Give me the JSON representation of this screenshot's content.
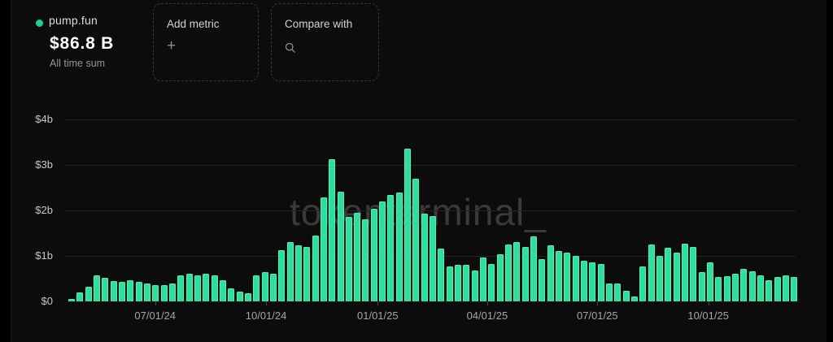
{
  "header": {
    "asset": {
      "name": "pump.fun",
      "value": "$86.8 B",
      "caption": "All time sum",
      "dot_color": "#10d687"
    },
    "add_metric": {
      "label": "Add metric",
      "icon": "plus"
    },
    "compare_with": {
      "label": "Compare with",
      "icon": "search"
    }
  },
  "watermark": "tokenterminal_",
  "chart_data": {
    "type": "bar",
    "title": "pump.fun - All time sum",
    "unit": "USD billions (weekly)",
    "bar_color": "#29e09f",
    "grid": "horizontal",
    "legend": "none",
    "ylim": [
      0,
      4
    ],
    "y_ticks": [
      {
        "label": "$4b",
        "value": 4
      },
      {
        "label": "$3b",
        "value": 3
      },
      {
        "label": "$2b",
        "value": 2
      },
      {
        "label": "$1b",
        "value": 1
      },
      {
        "label": "$0",
        "value": 0
      }
    ],
    "x_ticks": [
      {
        "label": "07/01/24",
        "pos": 0.119
      },
      {
        "label": "10/01/24",
        "pos": 0.271
      },
      {
        "label": "01/01/25",
        "pos": 0.424
      },
      {
        "label": "04/01/25",
        "pos": 0.574
      },
      {
        "label": "07/01/25",
        "pos": 0.725
      },
      {
        "label": "10/01/25",
        "pos": 0.877
      }
    ],
    "values": [
      0.05,
      0.2,
      0.33,
      0.58,
      0.52,
      0.45,
      0.43,
      0.46,
      0.43,
      0.39,
      0.36,
      0.36,
      0.4,
      0.57,
      0.6,
      0.58,
      0.61,
      0.58,
      0.46,
      0.29,
      0.21,
      0.17,
      0.57,
      0.64,
      0.6,
      1.12,
      1.31,
      1.24,
      1.2,
      1.45,
      2.28,
      3.13,
      2.41,
      1.86,
      1.95,
      1.8,
      2.03,
      2.19,
      2.34,
      2.4,
      3.35,
      2.7,
      1.92,
      1.87,
      1.16,
      0.77,
      0.8,
      0.8,
      0.68,
      0.97,
      0.83,
      1.04,
      1.25,
      1.31,
      1.2,
      1.42,
      0.92,
      1.24,
      1.1,
      1.08,
      1.0,
      0.9,
      0.86,
      0.82,
      0.39,
      0.4,
      0.23,
      0.11,
      0.76,
      1.25,
      1.0,
      1.18,
      1.07,
      1.27,
      1.2,
      0.64,
      0.86,
      0.54,
      0.55,
      0.6,
      0.71,
      0.66,
      0.57,
      0.46,
      0.53,
      0.58,
      0.54
    ]
  }
}
